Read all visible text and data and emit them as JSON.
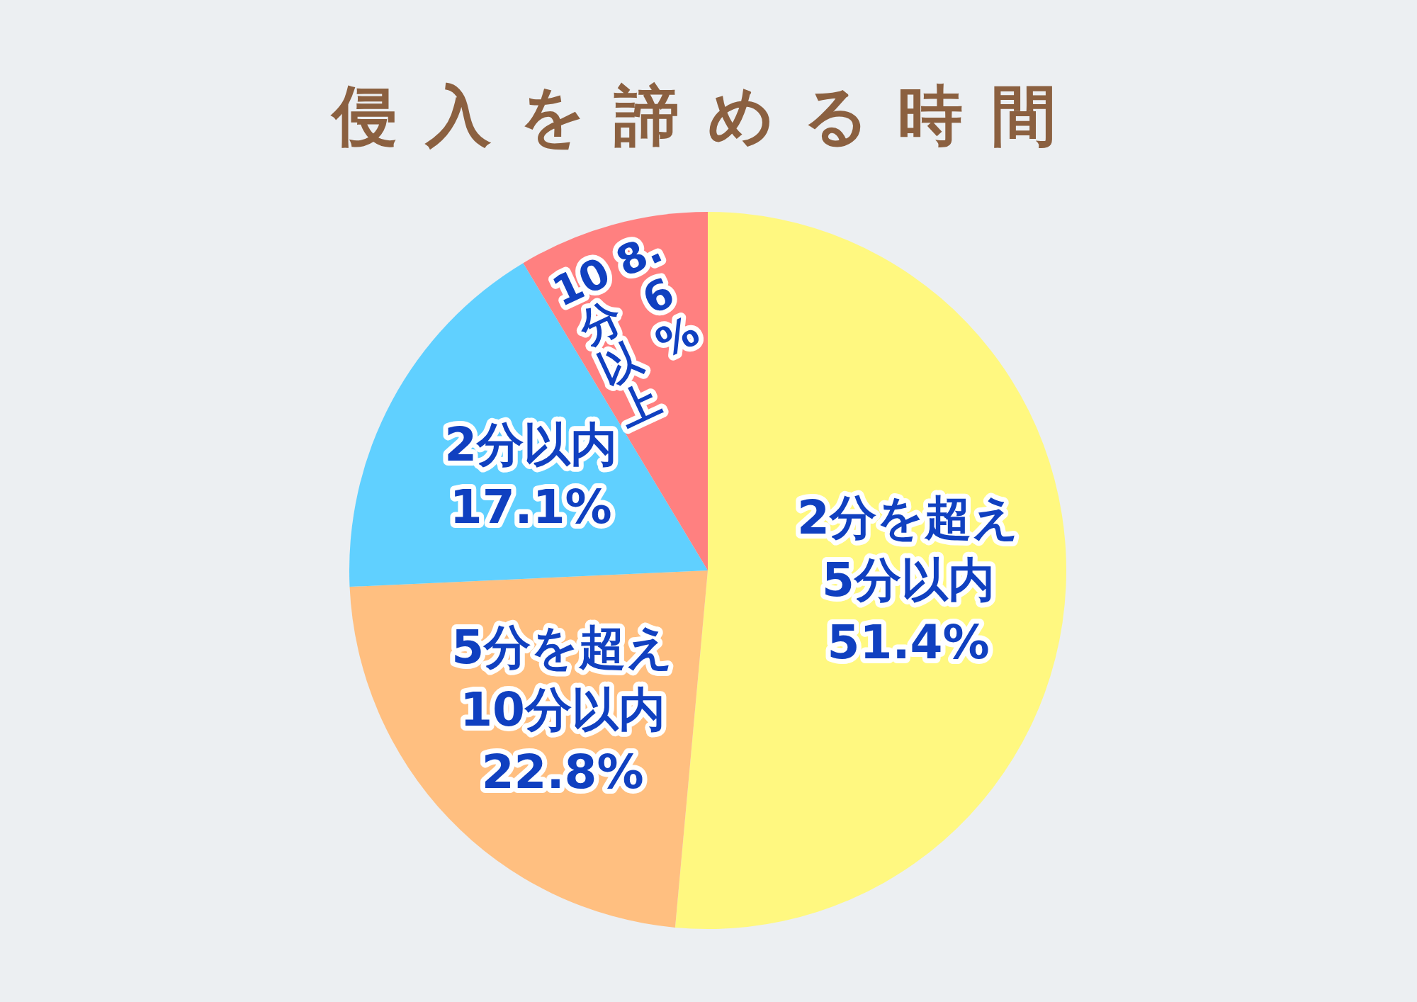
{
  "chart_data": {
    "type": "pie",
    "title": "侵入を諦める時間",
    "categories": [
      "2分を超え\n5分以内",
      "5分を超え\n10分以内",
      "2分以内",
      "10分以上"
    ],
    "values": [
      51.4,
      22.8,
      17.1,
      8.6
    ],
    "colors": [
      "#fff880",
      "#ffbf80",
      "#60d0ff",
      "#ff8080"
    ],
    "value_labels": [
      "51.4%",
      "22.8%",
      "17.1%",
      "8.6%"
    ]
  }
}
